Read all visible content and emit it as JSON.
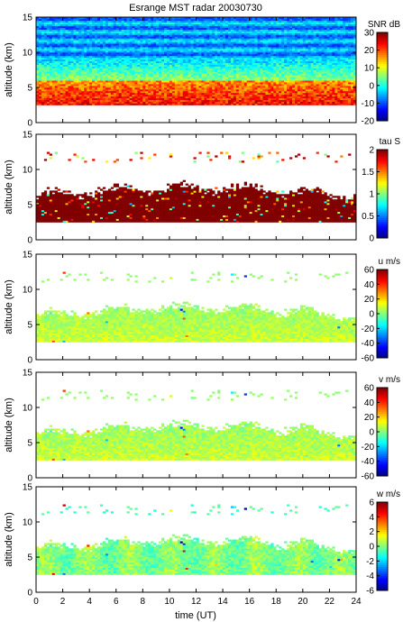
{
  "title": "Esrange MST radar 20030730",
  "x_axis": {
    "label": "time (UT)",
    "range": [
      0,
      24
    ],
    "ticks": [
      0,
      2,
      4,
      6,
      8,
      10,
      12,
      14,
      16,
      18,
      20,
      22,
      24
    ]
  },
  "chart_data": [
    {
      "type": "heatmap",
      "ylabel": "altitude (km)",
      "ylim": [
        0,
        15
      ],
      "yticks": [
        0,
        5,
        10,
        15
      ],
      "colorbar": {
        "label": "SNR dB",
        "min": -20,
        "max": 30,
        "ticks": [
          -20,
          -10,
          0,
          10,
          20,
          30
        ]
      },
      "kind": "snr"
    },
    {
      "type": "heatmap",
      "ylabel": "altitude (km)",
      "ylim": [
        0,
        15
      ],
      "yticks": [
        0,
        5,
        10,
        15
      ],
      "colorbar": {
        "label": "tau S",
        "min": 0,
        "max": 2,
        "ticks": [
          0,
          0.5,
          1,
          1.5,
          2
        ]
      },
      "kind": "tau"
    },
    {
      "type": "heatmap",
      "ylabel": "altitude (km)",
      "ylim": [
        0,
        15
      ],
      "yticks": [
        0,
        5,
        10,
        15
      ],
      "colorbar": {
        "label": "u m/s",
        "min": -60,
        "max": 60,
        "ticks": [
          -60,
          -40,
          -20,
          0,
          20,
          40,
          60
        ]
      },
      "kind": "u"
    },
    {
      "type": "heatmap",
      "ylabel": "altitude (km)",
      "ylim": [
        0,
        15
      ],
      "yticks": [
        0,
        5,
        10,
        15
      ],
      "colorbar": {
        "label": "v m/s",
        "min": -60,
        "max": 60,
        "ticks": [
          -60,
          -40,
          -20,
          0,
          20,
          40,
          60
        ]
      },
      "kind": "v"
    },
    {
      "type": "heatmap",
      "ylabel": "altitude (km)",
      "ylim": [
        0,
        15
      ],
      "yticks": [
        0,
        5,
        10,
        15
      ],
      "colorbar": {
        "label": "w m/s",
        "min": -6,
        "max": 6,
        "ticks": [
          -6,
          -4,
          -2,
          0,
          2,
          4,
          6
        ]
      },
      "kind": "w"
    }
  ]
}
